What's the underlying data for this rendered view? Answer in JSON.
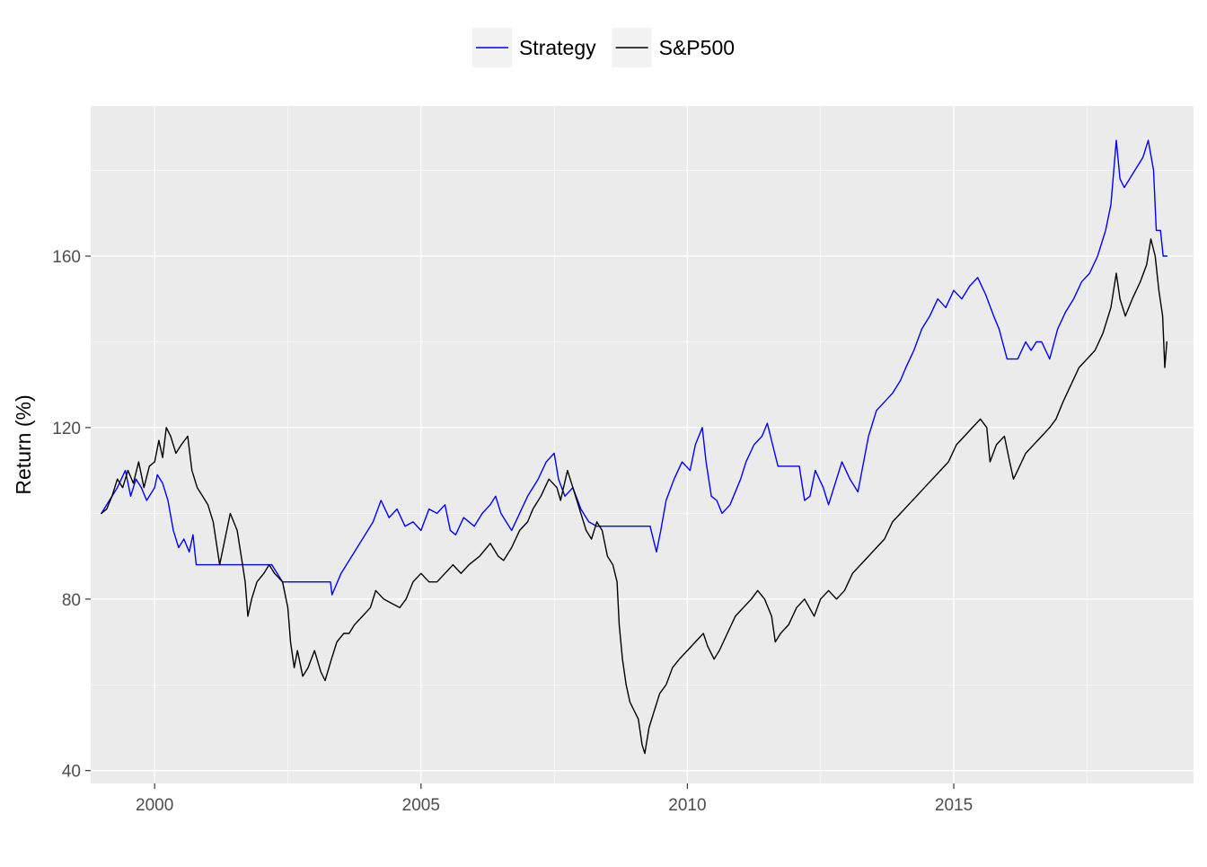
{
  "chart_data": {
    "type": "line",
    "title": "",
    "xlabel": "",
    "ylabel": "Return (%)",
    "xlim": [
      1998.8,
      2019.5
    ],
    "ylim": [
      37,
      195
    ],
    "x_ticks": [
      2000,
      2005,
      2010,
      2015
    ],
    "x_tick_labels": [
      "2000",
      "2005",
      "2010",
      "2015"
    ],
    "y_ticks": [
      40,
      80,
      120,
      160
    ],
    "y_tick_labels": [
      "40",
      "80",
      "120",
      "160"
    ],
    "grid": true,
    "legend_position": "top",
    "series": [
      {
        "name": "Strategy",
        "color": "#0000ff",
        "points": [
          [
            1999.0,
            100
          ],
          [
            1999.15,
            103
          ],
          [
            1999.3,
            106
          ],
          [
            1999.45,
            110
          ],
          [
            1999.55,
            104
          ],
          [
            1999.65,
            108
          ],
          [
            1999.75,
            106
          ],
          [
            1999.85,
            103
          ],
          [
            2000.0,
            106
          ],
          [
            2000.05,
            109
          ],
          [
            2000.15,
            107
          ],
          [
            2000.25,
            103
          ],
          [
            2000.35,
            96
          ],
          [
            2000.45,
            92
          ],
          [
            2000.55,
            94
          ],
          [
            2000.65,
            91
          ],
          [
            2000.72,
            95
          ],
          [
            2000.78,
            88
          ],
          [
            2001.5,
            88
          ],
          [
            2002.2,
            88
          ],
          [
            2002.4,
            84
          ],
          [
            2003.3,
            84
          ],
          [
            2003.33,
            81
          ],
          [
            2003.5,
            86
          ],
          [
            2003.7,
            90
          ],
          [
            2003.9,
            94
          ],
          [
            2004.1,
            98
          ],
          [
            2004.25,
            103
          ],
          [
            2004.4,
            99
          ],
          [
            2004.55,
            101
          ],
          [
            2004.7,
            97
          ],
          [
            2004.85,
            98
          ],
          [
            2005.0,
            96
          ],
          [
            2005.15,
            101
          ],
          [
            2005.3,
            100
          ],
          [
            2005.45,
            102
          ],
          [
            2005.55,
            96
          ],
          [
            2005.65,
            95
          ],
          [
            2005.8,
            99
          ],
          [
            2006.0,
            97
          ],
          [
            2006.15,
            100
          ],
          [
            2006.3,
            102
          ],
          [
            2006.4,
            104
          ],
          [
            2006.5,
            100
          ],
          [
            2006.6,
            98
          ],
          [
            2006.7,
            96
          ],
          [
            2006.85,
            100
          ],
          [
            2007.0,
            104
          ],
          [
            2007.2,
            108
          ],
          [
            2007.35,
            112
          ],
          [
            2007.5,
            114
          ],
          [
            2007.58,
            108
          ],
          [
            2007.7,
            104
          ],
          [
            2007.85,
            106
          ],
          [
            2008.0,
            101
          ],
          [
            2008.15,
            98
          ],
          [
            2008.3,
            97
          ],
          [
            2009.3,
            97
          ],
          [
            2009.38,
            93
          ],
          [
            2009.42,
            91
          ],
          [
            2009.5,
            96
          ],
          [
            2009.6,
            103
          ],
          [
            2009.75,
            108
          ],
          [
            2009.9,
            112
          ],
          [
            2010.05,
            110
          ],
          [
            2010.15,
            116
          ],
          [
            2010.28,
            120
          ],
          [
            2010.35,
            112
          ],
          [
            2010.45,
            104
          ],
          [
            2010.55,
            103
          ],
          [
            2010.65,
            100
          ],
          [
            2010.8,
            102
          ],
          [
            2011.0,
            108
          ],
          [
            2011.1,
            112
          ],
          [
            2011.25,
            116
          ],
          [
            2011.4,
            118
          ],
          [
            2011.5,
            121
          ],
          [
            2011.6,
            116
          ],
          [
            2011.7,
            111
          ],
          [
            2012.1,
            111
          ],
          [
            2012.2,
            103
          ],
          [
            2012.3,
            104
          ],
          [
            2012.4,
            110
          ],
          [
            2012.55,
            106
          ],
          [
            2012.65,
            102
          ],
          [
            2012.8,
            108
          ],
          [
            2012.9,
            112
          ],
          [
            2013.05,
            108
          ],
          [
            2013.2,
            105
          ],
          [
            2013.4,
            118
          ],
          [
            2013.55,
            124
          ],
          [
            2013.7,
            126
          ],
          [
            2013.85,
            128
          ],
          [
            2014.0,
            131
          ],
          [
            2014.1,
            134
          ],
          [
            2014.25,
            138
          ],
          [
            2014.4,
            143
          ],
          [
            2014.55,
            146
          ],
          [
            2014.7,
            150
          ],
          [
            2014.85,
            148
          ],
          [
            2015.0,
            152
          ],
          [
            2015.15,
            150
          ],
          [
            2015.3,
            153
          ],
          [
            2015.45,
            155
          ],
          [
            2015.6,
            151
          ],
          [
            2015.75,
            146
          ],
          [
            2015.85,
            143
          ],
          [
            2016.0,
            136
          ],
          [
            2016.2,
            136
          ],
          [
            2016.35,
            140
          ],
          [
            2016.45,
            138
          ],
          [
            2016.55,
            140
          ],
          [
            2016.65,
            140
          ],
          [
            2016.8,
            136
          ],
          [
            2016.95,
            143
          ],
          [
            2017.1,
            147
          ],
          [
            2017.25,
            150
          ],
          [
            2017.4,
            154
          ],
          [
            2017.55,
            156
          ],
          [
            2017.7,
            160
          ],
          [
            2017.85,
            166
          ],
          [
            2017.95,
            172
          ],
          [
            2018.05,
            187
          ],
          [
            2018.12,
            178
          ],
          [
            2018.2,
            176
          ],
          [
            2018.3,
            178
          ],
          [
            2018.45,
            181
          ],
          [
            2018.55,
            183
          ],
          [
            2018.65,
            187
          ],
          [
            2018.75,
            180
          ],
          [
            2018.8,
            166
          ],
          [
            2018.88,
            166
          ],
          [
            2018.93,
            160
          ],
          [
            2019.0,
            160
          ]
        ]
      },
      {
        "name": "S&P500",
        "color": "#000000",
        "points": [
          [
            1999.0,
            100
          ],
          [
            1999.1,
            101
          ],
          [
            1999.2,
            104
          ],
          [
            1999.3,
            108
          ],
          [
            1999.4,
            106
          ],
          [
            1999.5,
            110
          ],
          [
            1999.6,
            107
          ],
          [
            1999.7,
            112
          ],
          [
            1999.8,
            106
          ],
          [
            1999.9,
            111
          ],
          [
            2000.0,
            112
          ],
          [
            2000.08,
            117
          ],
          [
            2000.15,
            113
          ],
          [
            2000.22,
            120
          ],
          [
            2000.3,
            118
          ],
          [
            2000.4,
            114
          ],
          [
            2000.5,
            116
          ],
          [
            2000.62,
            118
          ],
          [
            2000.7,
            110
          ],
          [
            2000.8,
            106
          ],
          [
            2000.9,
            104
          ],
          [
            2001.0,
            102
          ],
          [
            2001.1,
            98
          ],
          [
            2001.22,
            88
          ],
          [
            2001.32,
            94
          ],
          [
            2001.42,
            100
          ],
          [
            2001.55,
            96
          ],
          [
            2001.65,
            88
          ],
          [
            2001.7,
            84
          ],
          [
            2001.75,
            76
          ],
          [
            2001.82,
            80
          ],
          [
            2001.92,
            84
          ],
          [
            2002.05,
            86
          ],
          [
            2002.15,
            88
          ],
          [
            2002.25,
            86
          ],
          [
            2002.4,
            84
          ],
          [
            2002.5,
            78
          ],
          [
            2002.55,
            70
          ],
          [
            2002.62,
            64
          ],
          [
            2002.68,
            68
          ],
          [
            2002.78,
            62
          ],
          [
            2002.88,
            64
          ],
          [
            2003.0,
            68
          ],
          [
            2003.12,
            63
          ],
          [
            2003.2,
            61
          ],
          [
            2003.32,
            66
          ],
          [
            2003.42,
            70
          ],
          [
            2003.55,
            72
          ],
          [
            2003.65,
            72
          ],
          [
            2003.75,
            74
          ],
          [
            2003.9,
            76
          ],
          [
            2004.05,
            78
          ],
          [
            2004.15,
            82
          ],
          [
            2004.3,
            80
          ],
          [
            2004.45,
            79
          ],
          [
            2004.6,
            78
          ],
          [
            2004.72,
            80
          ],
          [
            2004.85,
            84
          ],
          [
            2005.0,
            86
          ],
          [
            2005.15,
            84
          ],
          [
            2005.3,
            84
          ],
          [
            2005.45,
            86
          ],
          [
            2005.6,
            88
          ],
          [
            2005.75,
            86
          ],
          [
            2005.9,
            88
          ],
          [
            2006.1,
            90
          ],
          [
            2006.3,
            93
          ],
          [
            2006.45,
            90
          ],
          [
            2006.55,
            89
          ],
          [
            2006.7,
            92
          ],
          [
            2006.85,
            96
          ],
          [
            2007.0,
            98
          ],
          [
            2007.1,
            101
          ],
          [
            2007.25,
            104
          ],
          [
            2007.4,
            108
          ],
          [
            2007.55,
            106
          ],
          [
            2007.62,
            103
          ],
          [
            2007.75,
            110
          ],
          [
            2007.85,
            106
          ],
          [
            2008.0,
            100
          ],
          [
            2008.1,
            96
          ],
          [
            2008.2,
            94
          ],
          [
            2008.3,
            98
          ],
          [
            2008.4,
            96
          ],
          [
            2008.5,
            90
          ],
          [
            2008.6,
            88
          ],
          [
            2008.68,
            84
          ],
          [
            2008.72,
            74
          ],
          [
            2008.78,
            66
          ],
          [
            2008.85,
            60
          ],
          [
            2008.92,
            56
          ],
          [
            2009.0,
            54
          ],
          [
            2009.08,
            52
          ],
          [
            2009.15,
            46
          ],
          [
            2009.2,
            44
          ],
          [
            2009.28,
            50
          ],
          [
            2009.38,
            54
          ],
          [
            2009.48,
            58
          ],
          [
            2009.6,
            60
          ],
          [
            2009.72,
            64
          ],
          [
            2009.85,
            66
          ],
          [
            2010.0,
            68
          ],
          [
            2010.15,
            70
          ],
          [
            2010.3,
            72
          ],
          [
            2010.38,
            69
          ],
          [
            2010.5,
            66
          ],
          [
            2010.6,
            68
          ],
          [
            2010.75,
            72
          ],
          [
            2010.9,
            76
          ],
          [
            2011.05,
            78
          ],
          [
            2011.2,
            80
          ],
          [
            2011.32,
            82
          ],
          [
            2011.45,
            80
          ],
          [
            2011.58,
            76
          ],
          [
            2011.65,
            70
          ],
          [
            2011.75,
            72
          ],
          [
            2011.9,
            74
          ],
          [
            2012.05,
            78
          ],
          [
            2012.2,
            80
          ],
          [
            2012.38,
            76
          ],
          [
            2012.5,
            80
          ],
          [
            2012.65,
            82
          ],
          [
            2012.8,
            80
          ],
          [
            2012.95,
            82
          ],
          [
            2013.1,
            86
          ],
          [
            2013.25,
            88
          ],
          [
            2013.4,
            90
          ],
          [
            2013.55,
            92
          ],
          [
            2013.7,
            94
          ],
          [
            2013.85,
            98
          ],
          [
            2014.0,
            100
          ],
          [
            2014.15,
            102
          ],
          [
            2014.3,
            104
          ],
          [
            2014.45,
            106
          ],
          [
            2014.6,
            108
          ],
          [
            2014.75,
            110
          ],
          [
            2014.9,
            112
          ],
          [
            2015.05,
            116
          ],
          [
            2015.2,
            118
          ],
          [
            2015.35,
            120
          ],
          [
            2015.5,
            122
          ],
          [
            2015.62,
            120
          ],
          [
            2015.68,
            112
          ],
          [
            2015.8,
            116
          ],
          [
            2015.95,
            118
          ],
          [
            2016.05,
            112
          ],
          [
            2016.12,
            108
          ],
          [
            2016.2,
            110
          ],
          [
            2016.35,
            114
          ],
          [
            2016.5,
            116
          ],
          [
            2016.65,
            118
          ],
          [
            2016.8,
            120
          ],
          [
            2016.92,
            122
          ],
          [
            2017.05,
            126
          ],
          [
            2017.2,
            130
          ],
          [
            2017.35,
            134
          ],
          [
            2017.5,
            136
          ],
          [
            2017.65,
            138
          ],
          [
            2017.8,
            142
          ],
          [
            2017.95,
            148
          ],
          [
            2018.05,
            156
          ],
          [
            2018.12,
            150
          ],
          [
            2018.22,
            146
          ],
          [
            2018.35,
            150
          ],
          [
            2018.5,
            154
          ],
          [
            2018.62,
            158
          ],
          [
            2018.7,
            164
          ],
          [
            2018.78,
            160
          ],
          [
            2018.85,
            152
          ],
          [
            2018.92,
            146
          ],
          [
            2018.96,
            134
          ],
          [
            2019.0,
            140
          ]
        ]
      }
    ]
  }
}
